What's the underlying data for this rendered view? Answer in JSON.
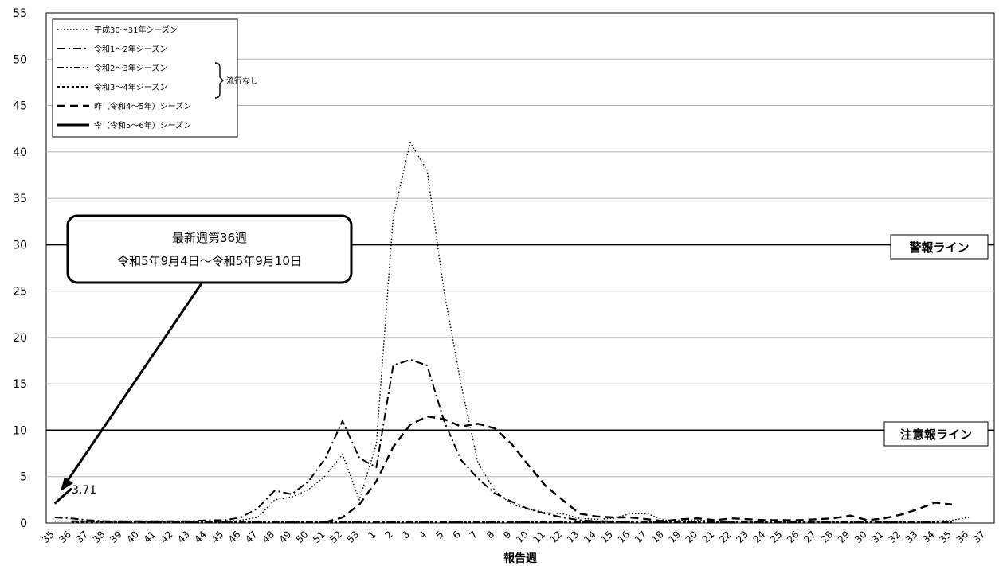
{
  "chart_data": {
    "type": "line",
    "xlabel": "報告週",
    "ylabel": "",
    "ylim": [
      0,
      55
    ],
    "yticks": [
      0,
      5,
      10,
      15,
      20,
      25,
      30,
      35,
      40,
      45,
      50,
      55
    ],
    "grid": true,
    "legend_position": "top-left",
    "categories": [
      "35",
      "36",
      "37",
      "38",
      "39",
      "40",
      "41",
      "42",
      "43",
      "44",
      "45",
      "46",
      "47",
      "48",
      "49",
      "50",
      "51",
      "52",
      "53",
      "1",
      "2",
      "3",
      "4",
      "5",
      "6",
      "7",
      "8",
      "9",
      "10",
      "11",
      "12",
      "13",
      "14",
      "15",
      "16",
      "17",
      "18",
      "19",
      "20",
      "21",
      "22",
      "23",
      "24",
      "25",
      "26",
      "27",
      "28",
      "29",
      "30",
      "31",
      "32",
      "33",
      "34",
      "35",
      "36",
      "37"
    ],
    "series": [
      {
        "name": "平成30～31年シーズン",
        "style": "dotted",
        "values": [
          0.2,
          0.2,
          0.2,
          0.1,
          0.1,
          0.1,
          0.1,
          0.1,
          0.1,
          0.1,
          0.2,
          0.3,
          0.6,
          2.5,
          2.8,
          3.6,
          5.1,
          7.4,
          2.5,
          8.5,
          33.0,
          41.0,
          38.0,
          25.0,
          15.0,
          6.5,
          3.5,
          2.0,
          1.5,
          1.1,
          1.0,
          0.5,
          0.4,
          0.5,
          1.0,
          1.0,
          0.3,
          0.3,
          0.3,
          0.2,
          0.2,
          0.2,
          0.2,
          0.2,
          0.2,
          0.2,
          0.2,
          0.2,
          0.2,
          0.2,
          0.2,
          0.2,
          0.2,
          0.3,
          0.6,
          null
        ]
      },
      {
        "name": "令和1～2年シーズン",
        "style": "dash-dot",
        "values": [
          0.6,
          0.5,
          0.3,
          0.2,
          0.2,
          0.2,
          0.2,
          0.2,
          0.2,
          0.3,
          0.3,
          0.6,
          1.6,
          3.5,
          3.1,
          4.5,
          7.0,
          11.0,
          7.0,
          6.0,
          17.0,
          17.6,
          17.0,
          11.0,
          6.8,
          4.8,
          3.2,
          2.3,
          1.5,
          1.0,
          0.6,
          0.3,
          0.2,
          0.2,
          0.1,
          null,
          null,
          null,
          null,
          null,
          null,
          null,
          null,
          null,
          null,
          null,
          null,
          null,
          null,
          null,
          null,
          null,
          null,
          null,
          null,
          null
        ]
      },
      {
        "name": "令和2～3年シーズン",
        "style": "dash-dot-dot",
        "values": [
          null,
          0.2,
          0.2,
          0.1,
          0.1,
          0.1,
          0.1,
          0.1,
          0.1,
          0.1,
          0.1,
          0.1,
          0.1,
          0.1,
          0.1,
          0.1,
          0.1,
          0.1,
          0.1,
          0.1,
          0.1,
          0.1,
          0.1,
          0.1,
          0.1,
          0.1,
          0.1,
          0.1,
          0.1,
          0.1,
          0.1,
          0.1,
          0.1,
          0.1,
          0.1,
          0.1,
          0.1,
          0.1,
          0.1,
          0.1,
          0.1,
          0.1,
          0.1,
          0.1,
          0.1,
          0.1,
          0.1,
          0.1,
          0.1,
          0.1,
          0.1,
          0.1,
          0.1,
          0.1,
          null,
          null
        ]
      },
      {
        "name": "令和3～4年シーズン",
        "style": "short-dash",
        "values": [
          null,
          0.1,
          0.1,
          0.1,
          0.1,
          0.1,
          0.1,
          0.1,
          0.1,
          0.1,
          0.1,
          0.1,
          0.1,
          0.1,
          0.1,
          0.1,
          0.1,
          0.1,
          0.1,
          0.1,
          0.1,
          0.1,
          0.1,
          0.1,
          0.1,
          0.1,
          0.1,
          0.1,
          0.1,
          0.1,
          0.1,
          0.1,
          0.1,
          0.1,
          0.1,
          0.1,
          0.1,
          0.1,
          0.1,
          0.1,
          0.1,
          0.1,
          0.1,
          0.1,
          0.1,
          0.1,
          0.1,
          0.1,
          0.1,
          0.1,
          0.1,
          0.1,
          0.1,
          0.1,
          null,
          null
        ]
      },
      {
        "name": "昨（令和4～5年）シーズン",
        "style": "dash",
        "values": [
          null,
          null,
          null,
          null,
          null,
          null,
          null,
          null,
          null,
          null,
          null,
          null,
          null,
          null,
          null,
          null,
          0.1,
          0.6,
          2.0,
          4.5,
          8.2,
          10.6,
          11.5,
          11.2,
          10.4,
          10.7,
          10.2,
          8.5,
          6.2,
          4.0,
          2.5,
          1.0,
          0.7,
          0.6,
          0.6,
          0.4,
          0.2,
          0.4,
          0.5,
          0.3,
          0.5,
          0.4,
          0.3,
          0.3,
          0.3,
          0.4,
          0.5,
          0.8,
          0.3,
          0.5,
          0.9,
          1.5,
          2.2,
          2.0,
          null,
          null
        ]
      },
      {
        "name": "今（令和5～6年）シーズン",
        "style": "solid",
        "values": [
          2.1,
          3.71,
          null,
          null,
          null,
          null,
          null,
          null,
          null,
          null,
          null,
          null,
          null,
          null,
          null,
          null,
          null,
          null,
          null,
          null,
          null,
          null,
          null,
          null,
          null,
          null,
          null,
          null,
          null,
          null,
          null,
          null,
          null,
          null,
          null,
          null,
          null,
          null,
          null,
          null,
          null,
          null,
          null,
          null,
          null,
          null,
          null,
          null,
          null,
          null,
          null,
          null,
          null,
          null,
          null,
          null
        ]
      }
    ],
    "reference_lines": [
      {
        "label": "警報ライン",
        "value": 30
      },
      {
        "label": "注意報ライン",
        "value": 10
      }
    ],
    "annotations": {
      "latest_week_line1": "最新週第36週",
      "latest_week_line2": "令和5年9月4日～令和5年9月10日",
      "current_value_label": "3.71",
      "legend_bracket_label": "流行なし"
    }
  }
}
